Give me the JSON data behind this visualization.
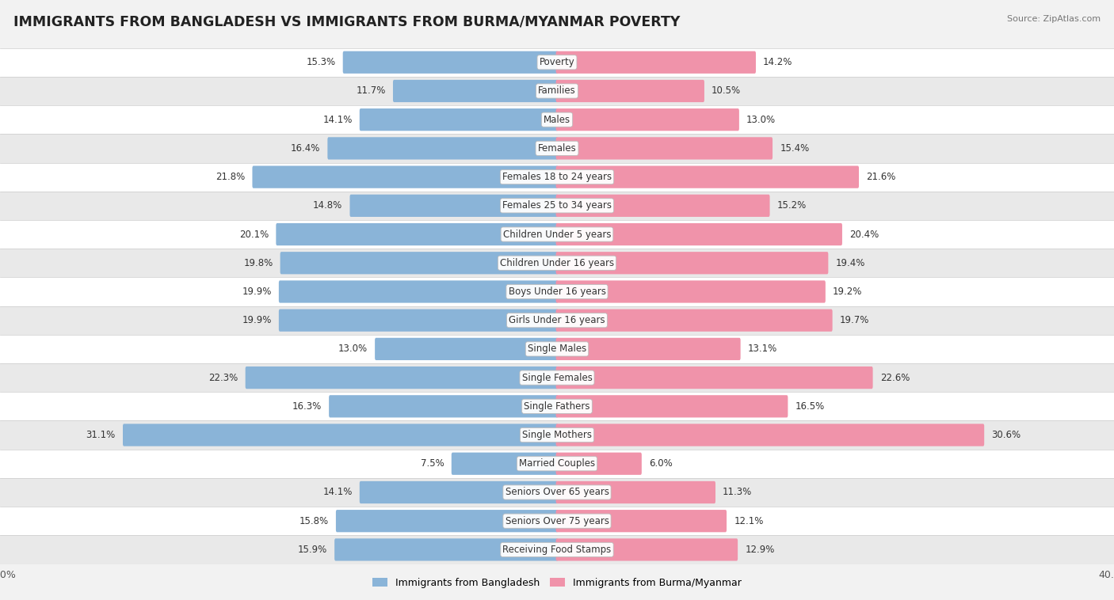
{
  "title": "IMMIGRANTS FROM BANGLADESH VS IMMIGRANTS FROM BURMA/MYANMAR POVERTY",
  "source": "Source: ZipAtlas.com",
  "categories": [
    "Poverty",
    "Families",
    "Males",
    "Females",
    "Females 18 to 24 years",
    "Females 25 to 34 years",
    "Children Under 5 years",
    "Children Under 16 years",
    "Boys Under 16 years",
    "Girls Under 16 years",
    "Single Males",
    "Single Females",
    "Single Fathers",
    "Single Mothers",
    "Married Couples",
    "Seniors Over 65 years",
    "Seniors Over 75 years",
    "Receiving Food Stamps"
  ],
  "left_values": [
    15.3,
    11.7,
    14.1,
    16.4,
    21.8,
    14.8,
    20.1,
    19.8,
    19.9,
    19.9,
    13.0,
    22.3,
    16.3,
    31.1,
    7.5,
    14.1,
    15.8,
    15.9
  ],
  "right_values": [
    14.2,
    10.5,
    13.0,
    15.4,
    21.6,
    15.2,
    20.4,
    19.4,
    19.2,
    19.7,
    13.1,
    22.6,
    16.5,
    30.6,
    6.0,
    11.3,
    12.1,
    12.9
  ],
  "left_color": "#8ab4d8",
  "right_color": "#f093aa",
  "bar_height": 0.62,
  "x_max": 40.0,
  "legend_left": "Immigrants from Bangladesh",
  "legend_right": "Immigrants from Burma/Myanmar",
  "bg_color": "#f2f2f2",
  "row_colors": [
    "#ffffff",
    "#e9e9e9"
  ],
  "title_fontsize": 12.5,
  "label_fontsize": 8.5,
  "value_fontsize": 8.5,
  "source_fontsize": 8
}
